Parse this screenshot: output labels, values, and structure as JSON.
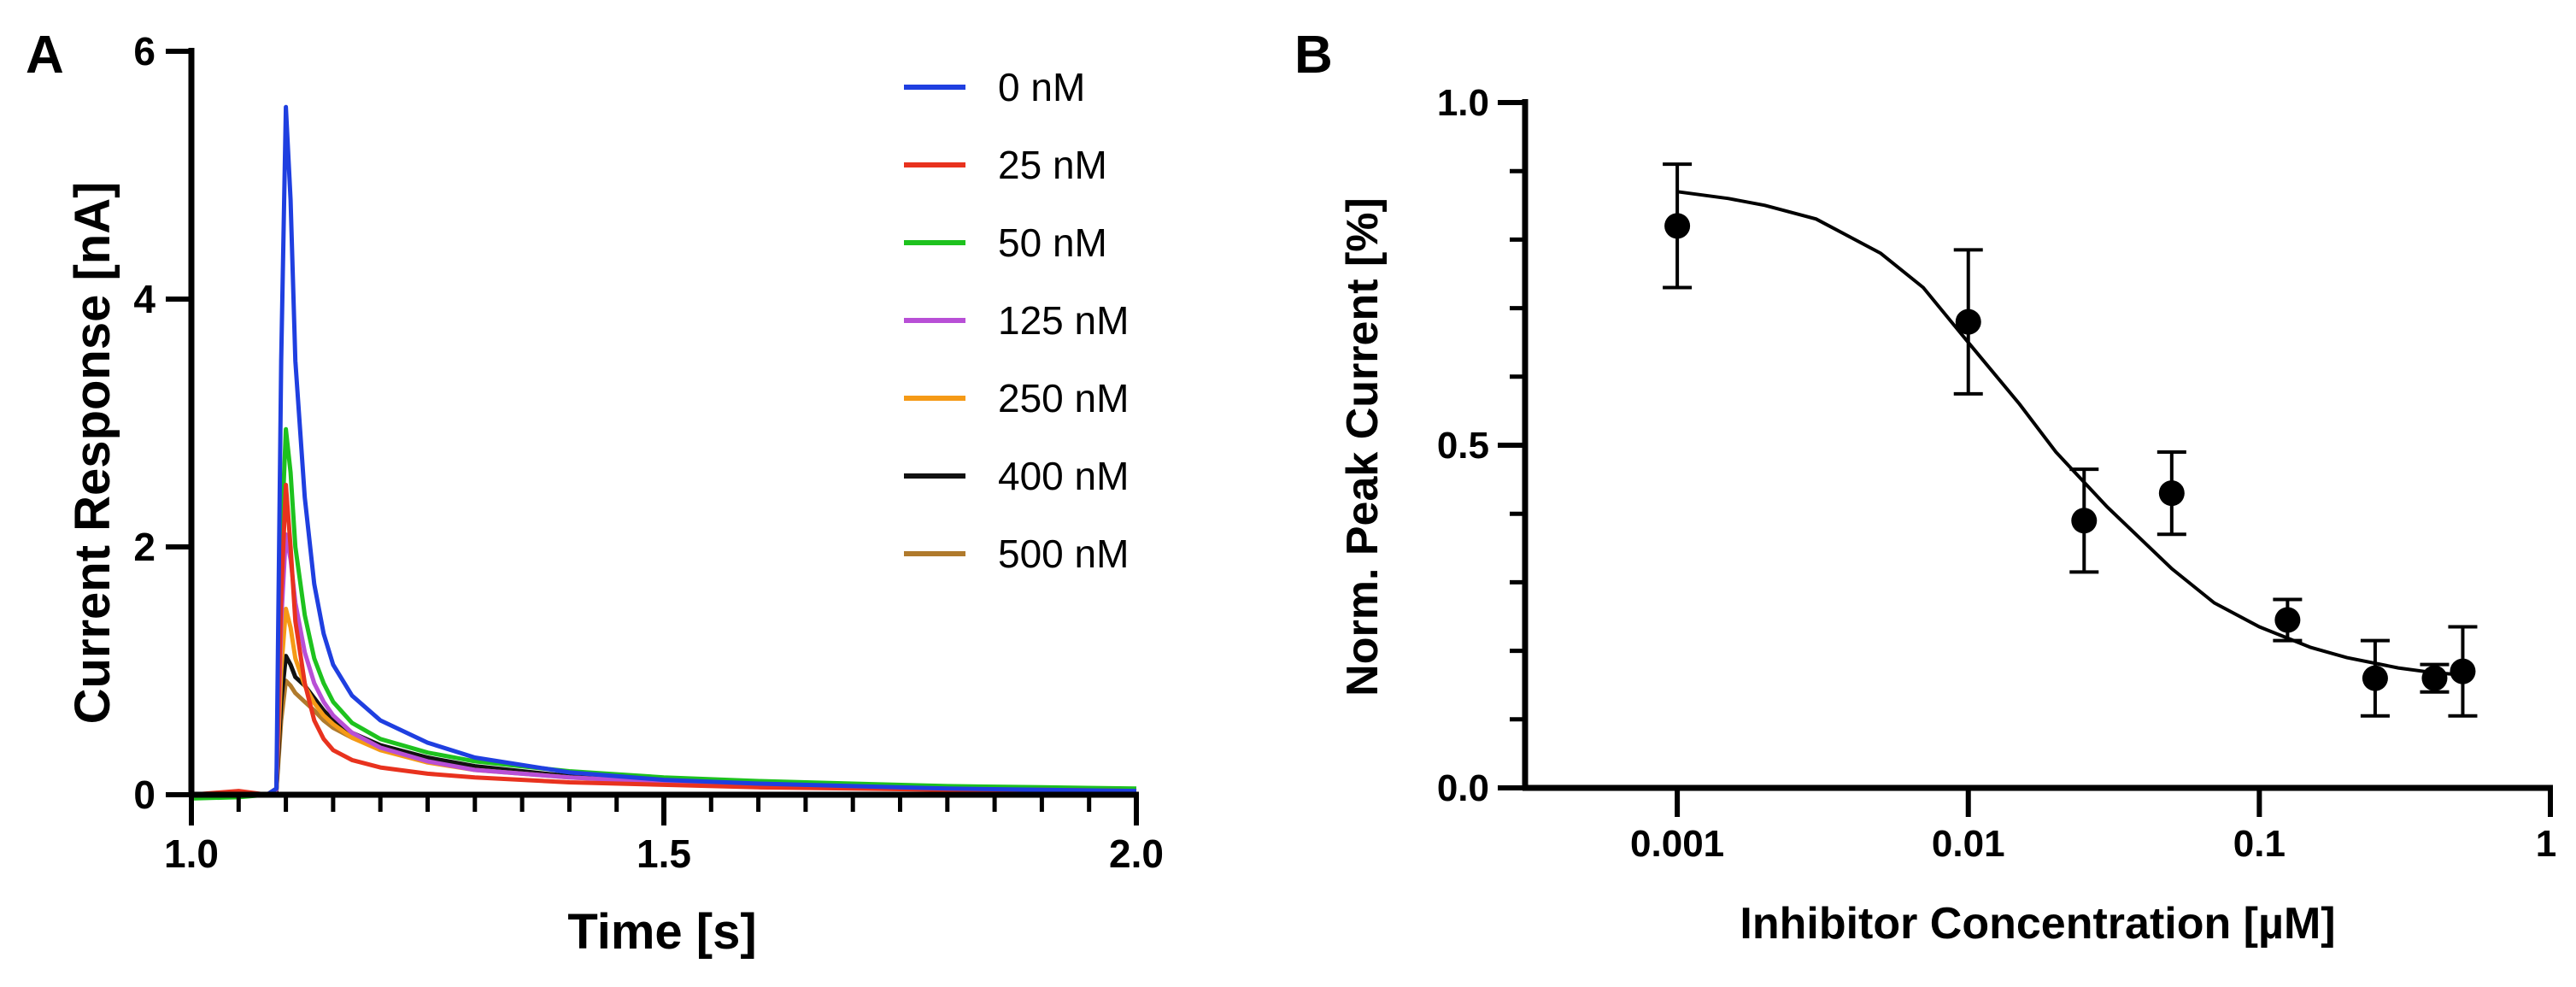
{
  "chart_data": [
    {
      "panel": "A",
      "type": "line",
      "title": "",
      "xlabel": "Time [s]",
      "ylabel": "Current Response [nA]",
      "xlim": [
        1.0,
        2.0
      ],
      "ylim": [
        0,
        6
      ],
      "xticks": [
        {
          "value": 1.0,
          "label": "1.0"
        },
        {
          "value": 1.5,
          "label": "1.5"
        },
        {
          "value": 2.0,
          "label": "2.0"
        }
      ],
      "yticks": [
        {
          "value": 0,
          "label": "0"
        },
        {
          "value": 2,
          "label": "2"
        },
        {
          "value": 4,
          "label": "4"
        },
        {
          "value": 6,
          "label": "6"
        }
      ],
      "legend_position": "top-right",
      "series": [
        {
          "name": "0 nM",
          "color": "#1f3fe0",
          "x": [
            1.0,
            1.05,
            1.08,
            1.09,
            1.095,
            1.1,
            1.105,
            1.11,
            1.12,
            1.13,
            1.14,
            1.15,
            1.17,
            1.2,
            1.25,
            1.3,
            1.4,
            1.5,
            1.6,
            1.7,
            1.8,
            1.9,
            2.0
          ],
          "y": [
            0.0,
            0.0,
            0.0,
            0.05,
            3.5,
            5.55,
            4.8,
            3.5,
            2.4,
            1.7,
            1.3,
            1.05,
            0.8,
            0.6,
            0.42,
            0.3,
            0.18,
            0.12,
            0.09,
            0.07,
            0.05,
            0.04,
            0.03
          ]
        },
        {
          "name": "25 nM",
          "color": "#e8321e",
          "x": [
            1.0,
            1.05,
            1.08,
            1.09,
            1.095,
            1.1,
            1.105,
            1.11,
            1.12,
            1.13,
            1.14,
            1.15,
            1.17,
            1.2,
            1.25,
            1.3,
            1.4,
            1.5,
            1.6,
            1.7,
            1.8,
            1.9,
            2.0
          ],
          "y": [
            0.0,
            0.03,
            0.0,
            0.05,
            1.6,
            2.5,
            2.0,
            1.4,
            0.9,
            0.6,
            0.45,
            0.36,
            0.28,
            0.22,
            0.17,
            0.14,
            0.1,
            0.08,
            0.06,
            0.05,
            0.04,
            0.04,
            0.03
          ]
        },
        {
          "name": "50 nM",
          "color": "#1ec21e",
          "x": [
            1.0,
            1.05,
            1.08,
            1.09,
            1.095,
            1.1,
            1.105,
            1.11,
            1.12,
            1.13,
            1.14,
            1.15,
            1.17,
            1.2,
            1.25,
            1.3,
            1.4,
            1.5,
            1.6,
            1.7,
            1.8,
            1.9,
            2.0
          ],
          "y": [
            -0.03,
            -0.02,
            0.0,
            0.05,
            2.0,
            2.95,
            2.6,
            2.0,
            1.45,
            1.1,
            0.9,
            0.75,
            0.58,
            0.45,
            0.34,
            0.27,
            0.19,
            0.14,
            0.11,
            0.09,
            0.07,
            0.06,
            0.05
          ]
        },
        {
          "name": "125 nM",
          "color": "#b84fd6",
          "x": [
            1.0,
            1.05,
            1.08,
            1.09,
            1.095,
            1.1,
            1.105,
            1.11,
            1.12,
            1.13,
            1.14,
            1.15,
            1.17,
            1.2,
            1.25,
            1.3,
            1.4,
            1.5,
            1.6,
            1.7,
            1.8,
            1.9,
            2.0
          ],
          "y": [
            0.0,
            0.0,
            0.0,
            0.04,
            1.4,
            2.1,
            1.9,
            1.55,
            1.15,
            0.9,
            0.75,
            0.64,
            0.5,
            0.38,
            0.27,
            0.2,
            0.14,
            0.1,
            0.08,
            0.06,
            0.05,
            0.04,
            0.03
          ]
        },
        {
          "name": "250 nM",
          "color": "#f59a16",
          "x": [
            1.0,
            1.05,
            1.08,
            1.09,
            1.095,
            1.1,
            1.105,
            1.11,
            1.12,
            1.13,
            1.14,
            1.15,
            1.17,
            1.2,
            1.25,
            1.3,
            1.4,
            1.5,
            1.6,
            1.7,
            1.8,
            1.9,
            2.0
          ],
          "y": [
            0.0,
            0.0,
            0.0,
            0.04,
            1.0,
            1.5,
            1.35,
            1.1,
            0.88,
            0.74,
            0.64,
            0.57,
            0.46,
            0.36,
            0.26,
            0.2,
            0.14,
            0.1,
            0.08,
            0.06,
            0.05,
            0.04,
            0.03
          ]
        },
        {
          "name": "400 nM",
          "color": "#111111",
          "x": [
            1.0,
            1.05,
            1.08,
            1.09,
            1.095,
            1.1,
            1.105,
            1.11,
            1.12,
            1.13,
            1.14,
            1.15,
            1.17,
            1.2,
            1.25,
            1.3,
            1.4,
            1.5,
            1.6,
            1.7,
            1.8,
            1.9,
            2.0
          ],
          "y": [
            0.0,
            0.0,
            0.0,
            0.03,
            0.75,
            1.12,
            1.05,
            0.95,
            0.88,
            0.78,
            0.68,
            0.6,
            0.5,
            0.4,
            0.3,
            0.23,
            0.15,
            0.11,
            0.08,
            0.06,
            0.05,
            0.04,
            0.03
          ]
        },
        {
          "name": "500 nM",
          "color": "#b07a2c",
          "x": [
            1.0,
            1.05,
            1.08,
            1.09,
            1.095,
            1.1,
            1.105,
            1.11,
            1.12,
            1.13,
            1.14,
            1.15,
            1.17,
            1.2,
            1.25,
            1.3,
            1.4,
            1.5,
            1.6,
            1.7,
            1.8,
            1.9,
            2.0
          ],
          "y": [
            0.0,
            0.0,
            0.0,
            0.03,
            0.6,
            0.92,
            0.88,
            0.82,
            0.75,
            0.68,
            0.6,
            0.54,
            0.46,
            0.37,
            0.28,
            0.22,
            0.15,
            0.11,
            0.08,
            0.06,
            0.05,
            0.04,
            0.03
          ]
        }
      ]
    },
    {
      "panel": "B",
      "type": "scatter",
      "title": "",
      "xlabel": "Inhibitor Concentration [µM]",
      "ylabel": "Norm. Peak Current [%]",
      "xscale": "log",
      "xlim": [
        0.0003,
        1
      ],
      "ylim": [
        0,
        1.0
      ],
      "xticks": [
        {
          "value": 0.001,
          "label": "0.001"
        },
        {
          "value": 0.01,
          "label": "0.01"
        },
        {
          "value": 0.1,
          "label": "0.1"
        },
        {
          "value": 1,
          "label": "1"
        }
      ],
      "yticks": [
        {
          "value": 0.0,
          "label": "0.0"
        },
        {
          "value": 0.5,
          "label": "0.5"
        },
        {
          "value": 1.0,
          "label": "1.0"
        }
      ],
      "points": [
        {
          "x": 0.001,
          "y": 0.82,
          "err": 0.09
        },
        {
          "x": 0.01,
          "y": 0.68,
          "err": 0.105
        },
        {
          "x": 0.025,
          "y": 0.39,
          "err": 0.075
        },
        {
          "x": 0.05,
          "y": 0.43,
          "err": 0.06
        },
        {
          "x": 0.125,
          "y": 0.245,
          "err": 0.03
        },
        {
          "x": 0.25,
          "y": 0.16,
          "err": 0.055
        },
        {
          "x": 0.4,
          "y": 0.16,
          "err": 0.02
        },
        {
          "x": 0.5,
          "y": 0.17,
          "err": 0.065
        }
      ],
      "fit": {
        "type": "sigmoid",
        "x": [
          0.001,
          0.0015,
          0.002,
          0.003,
          0.005,
          0.007,
          0.01,
          0.015,
          0.02,
          0.03,
          0.05,
          0.07,
          0.1,
          0.15,
          0.2,
          0.3,
          0.4,
          0.5
        ],
        "y": [
          0.87,
          0.86,
          0.85,
          0.83,
          0.78,
          0.73,
          0.65,
          0.56,
          0.49,
          0.41,
          0.32,
          0.27,
          0.235,
          0.205,
          0.19,
          0.175,
          0.168,
          0.165
        ]
      },
      "marker_color": "#000000"
    }
  ]
}
